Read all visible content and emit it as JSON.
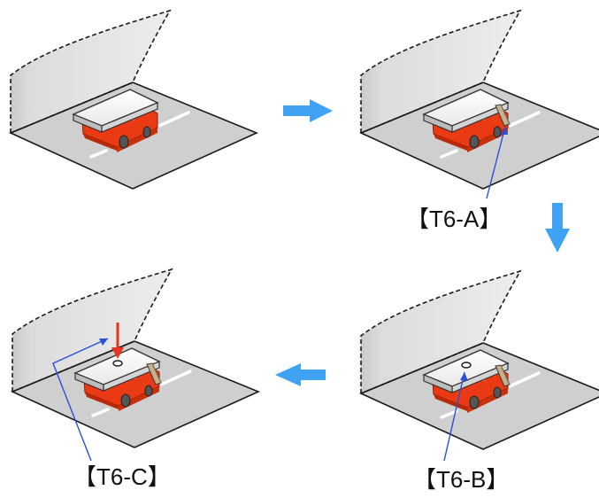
{
  "labels": {
    "t6a": "【T6-A】",
    "t6b": "【T6-B】",
    "t6c": "【T6-C】"
  },
  "icons": {
    "flow_arrow": "flow-arrow-icon",
    "pointer": "pointer-line-icon",
    "insert_arrow": "insert-arrow-icon"
  },
  "colors": {
    "flow_arrow": "#3fa2f2",
    "pointer_line": "#2a4fd8",
    "insert_arrow": "#e8331f",
    "robot_body": "#ea3a14",
    "floor": "#cfcfcf",
    "wall": "#e3e3e3",
    "lane_marking": "#ffffff"
  }
}
